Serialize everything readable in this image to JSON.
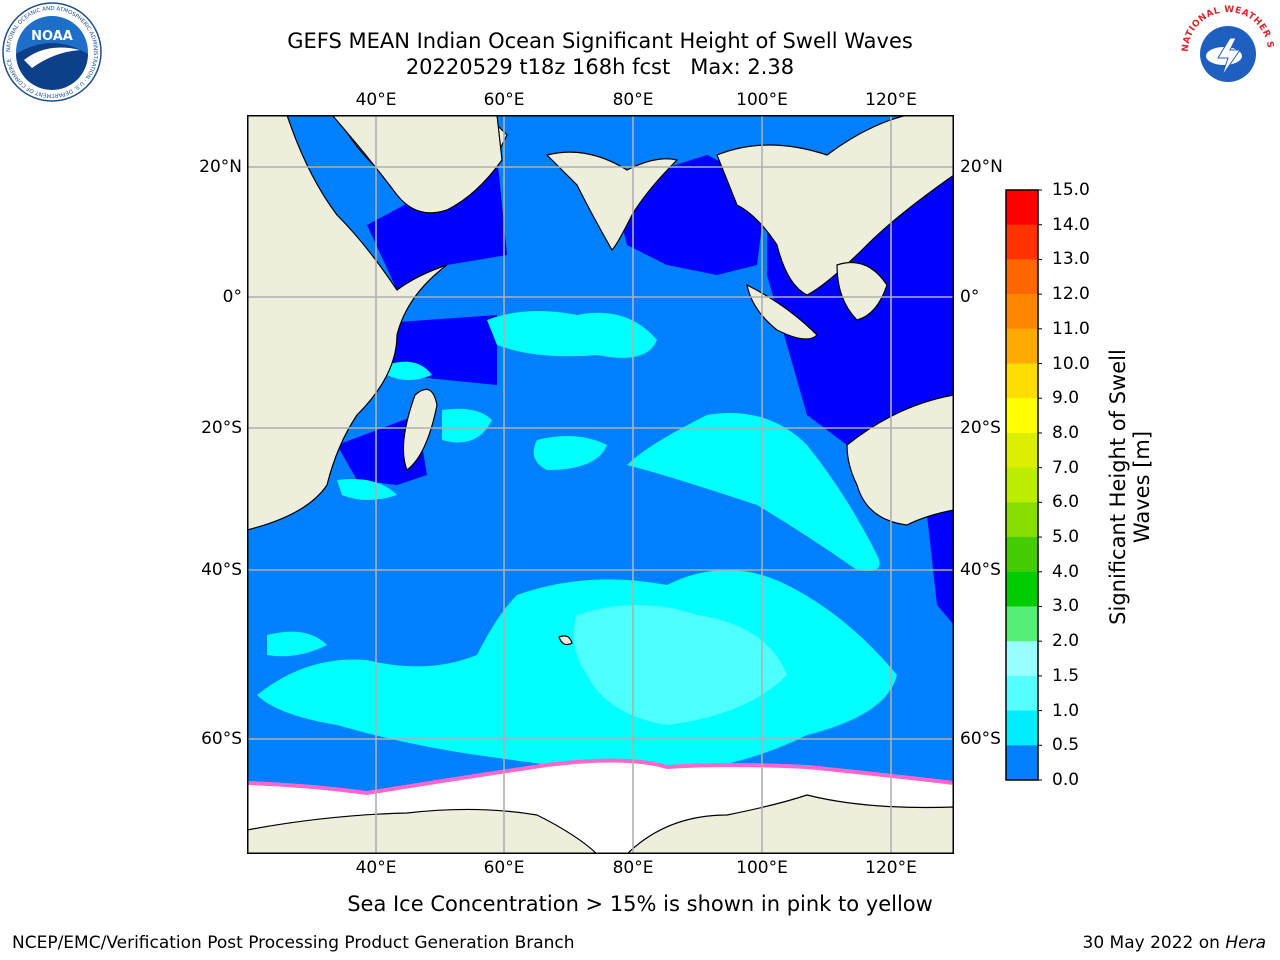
{
  "title": {
    "line1": "GEFS MEAN Indian Ocean Significant Height of Swell Waves",
    "line2": "20220529 t18z 168h fcst   Max: 2.38"
  },
  "map": {
    "lon_ticks": [
      "40°E",
      "60°E",
      "80°E",
      "100°E",
      "120°E"
    ],
    "lat_ticks": [
      "20°N",
      "0°",
      "20°S",
      "40°S",
      "60°S"
    ],
    "colors": {
      "ocean": "#0080ff",
      "ocean_shallow": "#0000ff",
      "swell_high": "#00ffff",
      "swell_higher": "#4dffff",
      "land": "#eeeedd",
      "ice": "#ffffff",
      "ice_edge_pink": "#ff66cc",
      "ice_edge_yellow": "#ffcc33",
      "grid": "#b0b0b0"
    }
  },
  "colorbar": {
    "title_line1": "Significant Height of Swell",
    "title_line2": "Waves [m]",
    "levels": [
      "15.0",
      "14.0",
      "13.0",
      "12.0",
      "11.0",
      "10.0",
      "9.0",
      "8.0",
      "7.0",
      "6.0",
      "5.0",
      "4.0",
      "3.0",
      "2.0",
      "1.5",
      "1.0",
      "0.5",
      "0.0"
    ],
    "colors": [
      "#ff0000",
      "#ff3300",
      "#ff6600",
      "#ff8800",
      "#ffaa00",
      "#ffdd00",
      "#ffff00",
      "#ddee00",
      "#bbee00",
      "#88dd00",
      "#44cc00",
      "#00cc00",
      "#55ee77",
      "#99ffff",
      "#55ffff",
      "#00eeff",
      "#0080ff",
      "#0000ff"
    ]
  },
  "note": "Sea Ice Concentration > 15% is shown in pink to yellow",
  "footer": {
    "left": "NCEP/EMC/Verification Post Processing Product Generation Branch",
    "right_date": "30 May 2022 on ",
    "right_host": "Hera"
  },
  "logos": {
    "noaa_text": "NOAA",
    "noaa_ring": "NATIONAL OCEANIC AND ATMOSPHERIC ADMINISTRATION · U.S. DEPARTMENT OF COMMERCE",
    "nws_ring": "NATIONAL WEATHER SERVICE"
  }
}
